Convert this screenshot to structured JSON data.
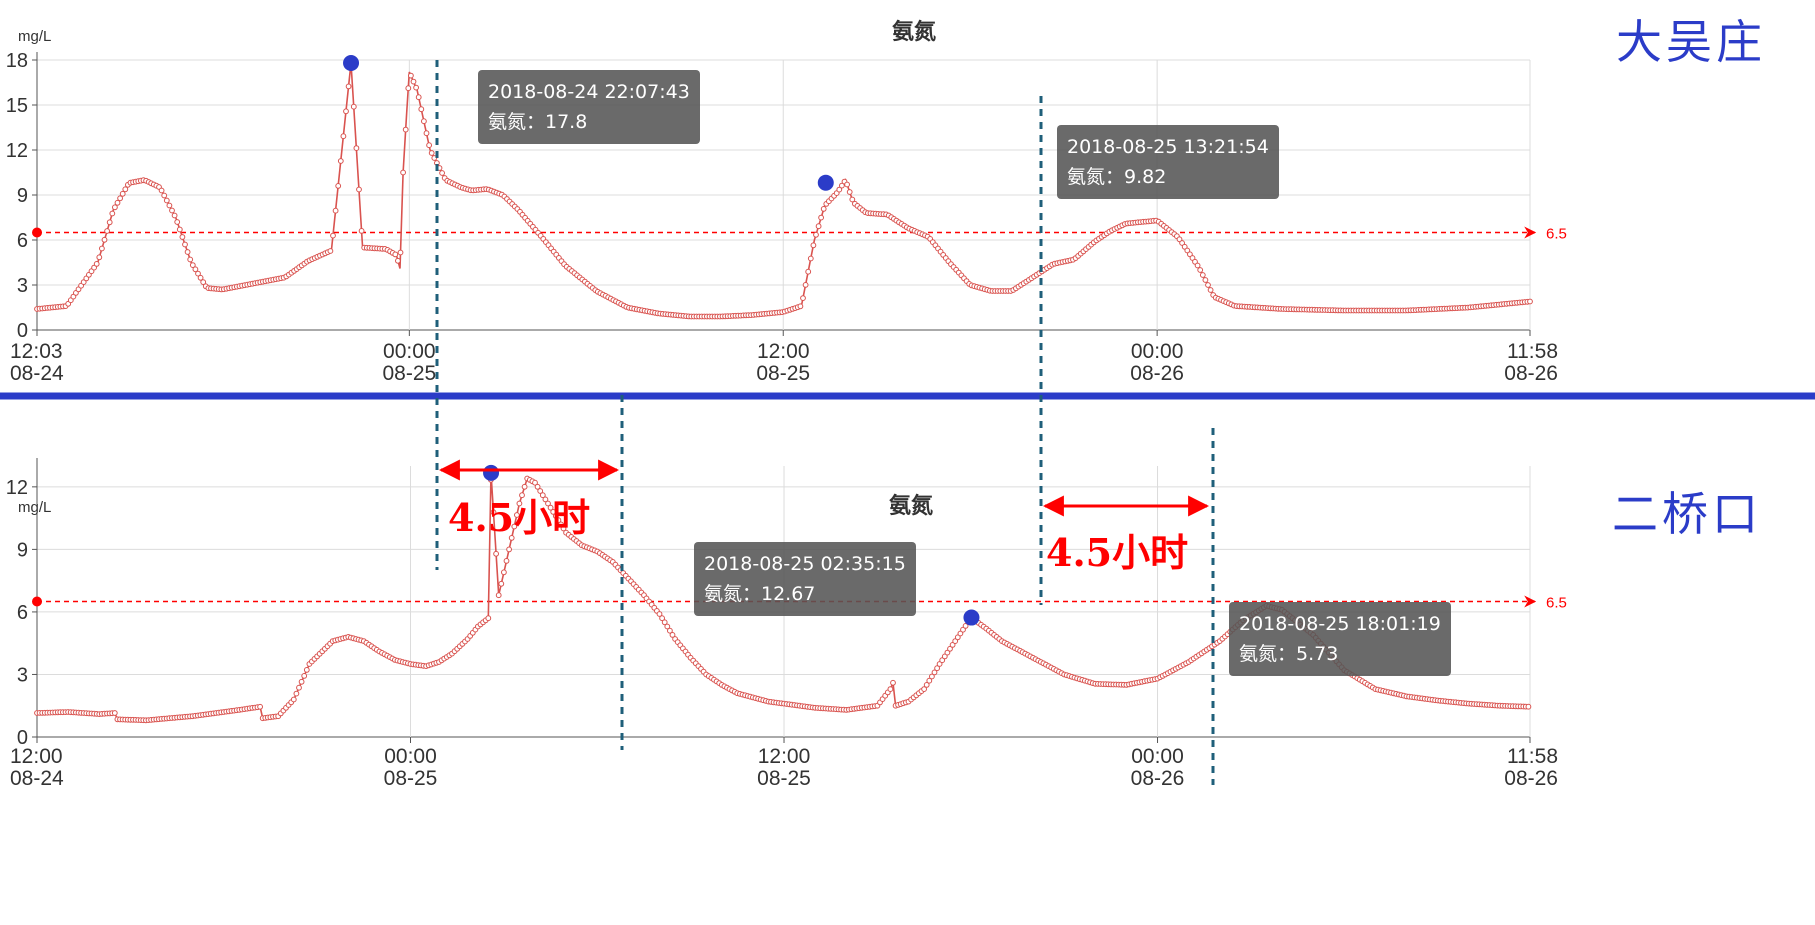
{
  "charts": [
    {
      "station": "大吴庄",
      "chart_title": "氨氮",
      "unit": "mg/L",
      "tooltips": [
        {
          "time": "2018-08-24 22:07:43",
          "label": "氨氮：17.8"
        },
        {
          "time": "2018-08-25 13:21:54",
          "label": "氨氮：9.82"
        }
      ]
    },
    {
      "station": "二桥口",
      "chart_title": "氨氮",
      "unit": "mg/L",
      "tooltips": [
        {
          "time": "2018-08-25 02:35:15",
          "label": "氨氮：12.67"
        },
        {
          "time": "2018-08-25 18:01:19",
          "label": "氨氮：5.73"
        }
      ]
    }
  ],
  "annotations": {
    "interval_1": "4.5小时",
    "interval_2": "4.5小时"
  },
  "colors": {
    "series": "#d9534f",
    "threshold": "#ff0000",
    "peak_marker": "#2b3cc8",
    "divider": "#2b3cc8",
    "guide_line": "#1f5f7a",
    "station_text": "#2b3cc8"
  },
  "chart_data": [
    {
      "type": "line",
      "title": "氨氮",
      "ylabel": "mg/L",
      "ylim": [
        0,
        18
      ],
      "yticks": [
        0,
        3,
        6,
        9,
        12,
        15,
        18
      ],
      "xlim": [
        "2018-08-24 12:03",
        "2018-08-26 11:58"
      ],
      "xticks": [
        {
          "t": "2018-08-24 12:03",
          "label": [
            "12:03",
            "08-24"
          ]
        },
        {
          "t": "2018-08-25 00:00",
          "label": [
            "00:00",
            "08-25"
          ]
        },
        {
          "t": "2018-08-25 12:00",
          "label": [
            "12:00",
            "08-25"
          ]
        },
        {
          "t": "2018-08-26 00:00",
          "label": [
            "00:00",
            "08-26"
          ]
        },
        {
          "t": "2018-08-26 11:58",
          "label": [
            "11:58",
            "08-26"
          ]
        }
      ],
      "threshold": 6.5,
      "threshold_label": "6.5",
      "grid": true,
      "highlighted": [
        {
          "t": "2018-08-24 22:07:43",
          "y": 17.8
        },
        {
          "t": "2018-08-25 13:21:54",
          "y": 9.82
        }
      ],
      "series": [
        {
          "values": [
            [
              "2018-08-24 12:03",
              1.4
            ],
            [
              "2018-08-24 13:00",
              1.6
            ],
            [
              "2018-08-24 14:00",
              4.5
            ],
            [
              "2018-08-24 14:30",
              8.0
            ],
            [
              "2018-08-24 15:00",
              9.8
            ],
            [
              "2018-08-24 15:30",
              10.0
            ],
            [
              "2018-08-24 16:00",
              9.5
            ],
            [
              "2018-08-24 16:30",
              7.5
            ],
            [
              "2018-08-24 17:00",
              4.5
            ],
            [
              "2018-08-24 17:30",
              2.8
            ],
            [
              "2018-08-24 18:00",
              2.7
            ],
            [
              "2018-08-24 19:00",
              3.1
            ],
            [
              "2018-08-24 20:00",
              3.5
            ],
            [
              "2018-08-24 20:45",
              4.6
            ],
            [
              "2018-08-24 21:30",
              5.3
            ],
            [
              "2018-08-24 22:30",
              5.5
            ],
            [
              "2018-08-24 23:15",
              5.4
            ],
            [
              "2018-08-24 23:35",
              5.0
            ],
            [
              "2018-08-24 23:42",
              4.1
            ],
            [
              "2018-08-24 23:48",
              10.5
            ],
            [
              "2018-08-24 23:55",
              14.5
            ],
            [
              "2018-08-25 00:00",
              17.2
            ],
            [
              "2018-08-24 22:07:43",
              17.8
            ],
            [
              "2018-08-25 00:15",
              16.0
            ],
            [
              "2018-08-25 00:40",
              12.0
            ],
            [
              "2018-08-25 01:10",
              10.0
            ],
            [
              "2018-08-25 01:40",
              9.5
            ],
            [
              "2018-08-25 02:00",
              9.3
            ],
            [
              "2018-08-25 02:30",
              9.4
            ],
            [
              "2018-08-25 03:00",
              9.0
            ],
            [
              "2018-08-25 03:30",
              8.0
            ],
            [
              "2018-08-25 04:15",
              6.2
            ],
            [
              "2018-08-25 05:00",
              4.3
            ],
            [
              "2018-08-25 06:00",
              2.6
            ],
            [
              "2018-08-25 07:00",
              1.5
            ],
            [
              "2018-08-25 08:00",
              1.1
            ],
            [
              "2018-08-25 09:00",
              0.9
            ],
            [
              "2018-08-25 10:00",
              0.9
            ],
            [
              "2018-08-25 11:00",
              1.0
            ],
            [
              "2018-08-25 12:00",
              1.2
            ],
            [
              "2018-08-25 12:35",
              1.6
            ],
            [
              "2018-08-25 13:00",
              6.0
            ],
            [
              "2018-08-25 13:20",
              8.3
            ],
            [
              "2018-08-25 13:45",
              9.2
            ],
            [
              "2018-08-25 14:00",
              10.0
            ],
            [
              "2018-08-25 14:15",
              8.5
            ],
            [
              "2018-08-25 14:40",
              7.8
            ],
            [
              "2018-08-25 15:20",
              7.7
            ],
            [
              "2018-08-25 16:00",
              6.8
            ],
            [
              "2018-08-25 16:40",
              6.2
            ],
            [
              "2018-08-25 17:20",
              4.5
            ],
            [
              "2018-08-25 18:00",
              3.0
            ],
            [
              "2018-08-25 18:40",
              2.6
            ],
            [
              "2018-08-25 19:20",
              2.6
            ],
            [
              "2018-08-25 20:00",
              3.5
            ],
            [
              "2018-08-25 20:40",
              4.4
            ],
            [
              "2018-08-25 21:20",
              4.7
            ],
            [
              "2018-08-25 22:00",
              5.9
            ],
            [
              "2018-08-25 22:30",
              6.6
            ],
            [
              "2018-08-25 23:00",
              7.1
            ],
            [
              "2018-08-26 00:00",
              7.3
            ],
            [
              "2018-08-26 00:40",
              6.2
            ],
            [
              "2018-08-26 01:20",
              4.2
            ],
            [
              "2018-08-26 01:50",
              2.2
            ],
            [
              "2018-08-26 02:30",
              1.6
            ],
            [
              "2018-08-26 04:00",
              1.4
            ],
            [
              "2018-08-26 06:00",
              1.3
            ],
            [
              "2018-08-26 08:00",
              1.3
            ],
            [
              "2018-08-26 10:00",
              1.5
            ],
            [
              "2018-08-26 11:58",
              1.9
            ]
          ]
        }
      ]
    },
    {
      "type": "line",
      "title": "氨氮",
      "ylabel": "mg/L",
      "ylim": [
        0,
        13
      ],
      "yticks": [
        0,
        3,
        6,
        9,
        12
      ],
      "xlim": [
        "2018-08-24 12:00",
        "2018-08-26 11:58"
      ],
      "xticks": [
        {
          "t": "2018-08-24 12:00",
          "label": [
            "12:00",
            "08-24"
          ]
        },
        {
          "t": "2018-08-25 00:00",
          "label": [
            "00:00",
            "08-25"
          ]
        },
        {
          "t": "2018-08-25 12:00",
          "label": [
            "12:00",
            "08-25"
          ]
        },
        {
          "t": "2018-08-26 00:00",
          "label": [
            "00:00",
            "08-26"
          ]
        },
        {
          "t": "2018-08-26 11:58",
          "label": [
            "11:58",
            "08-26"
          ]
        }
      ],
      "threshold": 6.5,
      "threshold_label": "6.5",
      "grid": true,
      "highlighted": [
        {
          "t": "2018-08-25 02:35:15",
          "y": 12.67
        },
        {
          "t": "2018-08-25 18:01:19",
          "y": 5.73
        }
      ],
      "series": [
        {
          "values": [
            [
              "2018-08-24 12:00",
              1.15
            ],
            [
              "2018-08-24 13:00",
              1.2
            ],
            [
              "2018-08-24 14:00",
              1.1
            ],
            [
              "2018-08-24 14:30",
              1.15
            ],
            [
              "2018-08-24 14:35",
              0.85
            ],
            [
              "2018-08-24 15:30",
              0.8
            ],
            [
              "2018-08-24 17:00",
              1.0
            ],
            [
              "2018-08-24 18:30",
              1.3
            ],
            [
              "2018-08-24 19:10",
              1.45
            ],
            [
              "2018-08-24 19:15",
              0.9
            ],
            [
              "2018-08-24 19:45",
              1.0
            ],
            [
              "2018-08-24 20:15",
              1.8
            ],
            [
              "2018-08-24 20:45",
              3.5
            ],
            [
              "2018-08-24 21:30",
              4.6
            ],
            [
              "2018-08-24 22:00",
              4.8
            ],
            [
              "2018-08-24 22:30",
              4.6
            ],
            [
              "2018-08-24 23:00",
              4.1
            ],
            [
              "2018-08-24 23:30",
              3.7
            ],
            [
              "2018-08-25 00:00",
              3.5
            ],
            [
              "2018-08-25 00:30",
              3.4
            ],
            [
              "2018-08-25 00:55",
              3.6
            ],
            [
              "2018-08-25 01:20",
              4.0
            ],
            [
              "2018-08-25 01:50",
              4.7
            ],
            [
              "2018-08-25 02:10",
              5.3
            ],
            [
              "2018-08-25 02:30",
              5.7
            ],
            [
              "2018-08-25 02:50",
              6.8
            ],
            [
              "2018-08-25 03:10",
              9.0
            ],
            [
              "2018-08-25 03:30",
              11.2
            ],
            [
              "2018-08-25 03:45",
              12.4
            ],
            [
              "2018-08-25 02:35:15",
              12.67
            ],
            [
              "2018-08-25 04:00",
              12.2
            ],
            [
              "2018-08-25 04:30",
              11.0
            ],
            [
              "2018-08-25 05:00",
              9.8
            ],
            [
              "2018-08-25 05:30",
              9.2
            ],
            [
              "2018-08-25 06:00",
              8.9
            ],
            [
              "2018-08-25 06:30",
              8.4
            ],
            [
              "2018-08-25 07:00",
              7.6
            ],
            [
              "2018-08-25 07:30",
              6.8
            ],
            [
              "2018-08-25 08:00",
              5.9
            ],
            [
              "2018-08-25 08:30",
              4.7
            ],
            [
              "2018-08-25 09:00",
              3.8
            ],
            [
              "2018-08-25 09:30",
              3.0
            ],
            [
              "2018-08-25 10:00",
              2.5
            ],
            [
              "2018-08-25 10:30",
              2.1
            ],
            [
              "2018-08-25 11:00",
              1.9
            ],
            [
              "2018-08-25 11:30",
              1.7
            ],
            [
              "2018-08-25 12:00",
              1.6
            ],
            [
              "2018-08-25 13:00",
              1.4
            ],
            [
              "2018-08-25 14:00",
              1.3
            ],
            [
              "2018-08-25 15:00",
              1.5
            ],
            [
              "2018-08-25 15:25",
              2.3
            ],
            [
              "2018-08-25 15:30",
              2.6
            ],
            [
              "2018-08-25 15:35",
              1.5
            ],
            [
              "2018-08-25 16:00",
              1.7
            ],
            [
              "2018-08-25 16:30",
              2.3
            ],
            [
              "2018-08-25 17:00",
              3.5
            ],
            [
              "2018-08-25 17:30",
              4.6
            ],
            [
              "2018-08-25 18:01",
              5.73
            ],
            [
              "2018-08-25 18:30",
              5.2
            ],
            [
              "2018-08-25 19:00",
              4.6
            ],
            [
              "2018-08-25 20:00",
              3.8
            ],
            [
              "2018-08-25 21:00",
              3.0
            ],
            [
              "2018-08-25 22:00",
              2.55
            ],
            [
              "2018-08-25 23:00",
              2.5
            ],
            [
              "2018-08-26 00:00",
              2.8
            ],
            [
              "2018-08-26 01:00",
              3.6
            ],
            [
              "2018-08-26 02:00",
              4.6
            ],
            [
              "2018-08-26 02:45",
              5.6
            ],
            [
              "2018-08-26 03:30",
              6.3
            ],
            [
              "2018-08-26 04:00",
              6.1
            ],
            [
              "2018-08-26 05:00",
              4.9
            ],
            [
              "2018-08-26 06:00",
              3.2
            ],
            [
              "2018-08-26 07:00",
              2.3
            ],
            [
              "2018-08-26 08:00",
              1.95
            ],
            [
              "2018-08-26 09:00",
              1.75
            ],
            [
              "2018-08-26 10:00",
              1.6
            ],
            [
              "2018-08-26 11:00",
              1.5
            ],
            [
              "2018-08-26 11:58",
              1.45
            ]
          ]
        }
      ]
    }
  ]
}
